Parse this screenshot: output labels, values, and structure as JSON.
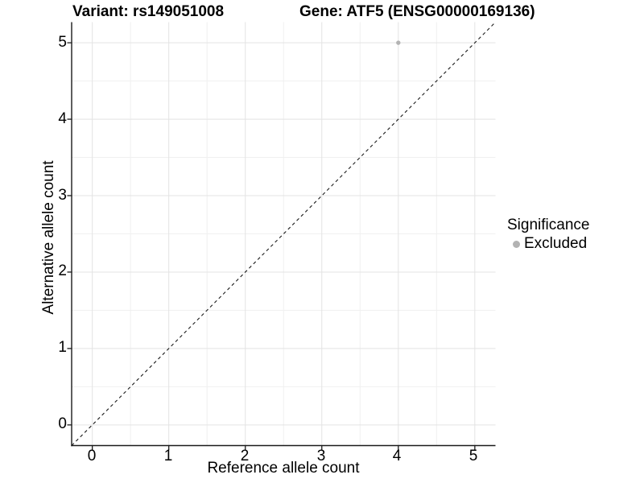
{
  "chart_data": {
    "type": "scatter",
    "titles": {
      "left": "Variant: rs149051008",
      "right": "Gene: ATF5 (ENSG00000169136)"
    },
    "xlabel": "Reference allele count",
    "ylabel": "Alternative allele count",
    "x_tick_labels": [
      "0",
      "1",
      "2",
      "3",
      "4",
      "5"
    ],
    "y_tick_labels": [
      "5",
      "4",
      "3",
      "2",
      "1",
      "0"
    ],
    "ticks_numeric": [
      0,
      1,
      2,
      3,
      4,
      5
    ],
    "xlim": [
      -0.27,
      5.27
    ],
    "ylim": [
      -0.27,
      5.27
    ],
    "grid": "major and minor gridlines, light gray on white, left and bottom black axis lines only",
    "points": [
      {
        "x": 4,
        "y": 5,
        "series": "Excluded"
      }
    ],
    "identity_line": {
      "type": "abline",
      "slope": 1,
      "intercept": 0,
      "style": "dashed",
      "color": "#1a1a1a"
    },
    "legend": {
      "title": "Significance",
      "position": "right",
      "items": [
        {
          "label": "Excluded",
          "marker": "circle",
          "color": "#b3b3b3"
        }
      ]
    },
    "style": {
      "point_color": "#b3b3b3",
      "grid_major": "#e3e3e3",
      "grid_minor": "#f0f0f0",
      "axis_color": "#1a1a1a",
      "background": "#ffffff"
    }
  }
}
